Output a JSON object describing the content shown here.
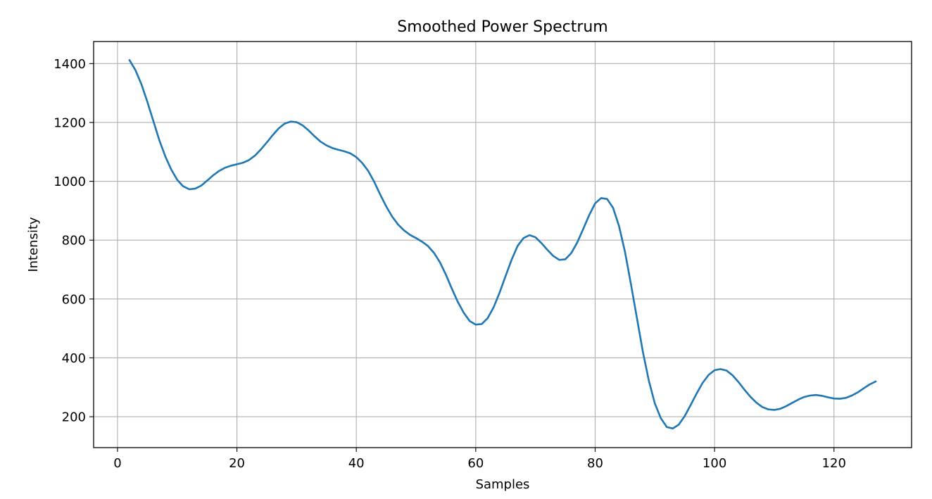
{
  "chart_data": {
    "type": "line",
    "title": "Smoothed Power Spectrum",
    "xlabel": "Samples",
    "ylabel": "Intensity",
    "xlim": [
      -4,
      133
    ],
    "ylim": [
      95,
      1475
    ],
    "xticks": [
      0,
      20,
      40,
      60,
      80,
      100,
      120
    ],
    "yticks": [
      200,
      400,
      600,
      800,
      1000,
      1200,
      1400
    ],
    "grid": true,
    "legend": "none",
    "series": [
      {
        "color": "#1f77b4",
        "x": [
          2,
          3,
          4,
          5,
          6,
          7,
          8,
          9,
          10,
          11,
          12,
          13,
          14,
          15,
          16,
          17,
          18,
          19,
          20,
          21,
          22,
          23,
          24,
          25,
          26,
          27,
          28,
          29,
          30,
          31,
          32,
          33,
          34,
          35,
          36,
          37,
          38,
          39,
          40,
          41,
          42,
          43,
          44,
          45,
          46,
          47,
          48,
          49,
          50,
          51,
          52,
          53,
          54,
          55,
          56,
          57,
          58,
          59,
          60,
          61,
          62,
          63,
          64,
          65,
          66,
          67,
          68,
          69,
          70,
          71,
          72,
          73,
          74,
          75,
          76,
          77,
          78,
          79,
          80,
          81,
          82,
          83,
          84,
          85,
          86,
          87,
          88,
          89,
          90,
          91,
          92,
          93,
          94,
          95,
          96,
          97,
          98,
          99,
          100,
          101,
          102,
          103,
          104,
          105,
          106,
          107,
          108,
          109,
          110,
          111,
          112,
          113,
          114,
          115,
          116,
          117,
          118,
          119,
          120,
          121,
          122,
          123,
          124,
          125,
          126,
          127
        ],
        "values": [
          1412,
          1378,
          1330,
          1270,
          1205,
          1140,
          1085,
          1040,
          1005,
          983,
          973,
          975,
          985,
          1002,
          1020,
          1035,
          1046,
          1053,
          1058,
          1063,
          1072,
          1087,
          1108,
          1132,
          1157,
          1180,
          1196,
          1203,
          1201,
          1190,
          1173,
          1153,
          1135,
          1122,
          1113,
          1107,
          1102,
          1095,
          1082,
          1062,
          1035,
          998,
          955,
          915,
          880,
          853,
          833,
          818,
          807,
          795,
          780,
          757,
          725,
          683,
          635,
          590,
          553,
          525,
          513,
          515,
          535,
          572,
          622,
          678,
          733,
          780,
          807,
          817,
          810,
          790,
          767,
          746,
          733,
          735,
          756,
          792,
          838,
          885,
          925,
          943,
          940,
          910,
          848,
          760,
          650,
          535,
          420,
          322,
          245,
          195,
          165,
          160,
          173,
          202,
          240,
          279,
          315,
          342,
          358,
          362,
          357,
          341,
          318,
          292,
          268,
          248,
          233,
          225,
          223,
          227,
          236,
          247,
          258,
          267,
          272,
          274,
          271,
          266,
          262,
          261,
          264,
          272,
          283,
          297,
          310,
          320
        ]
      }
    ]
  }
}
